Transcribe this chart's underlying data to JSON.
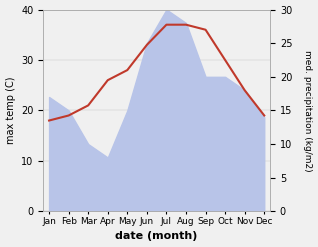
{
  "months": [
    "Jan",
    "Feb",
    "Mar",
    "Apr",
    "May",
    "Jun",
    "Jul",
    "Aug",
    "Sep",
    "Oct",
    "Nov",
    "Dec"
  ],
  "max_temp": [
    18,
    19,
    21,
    26,
    28,
    33,
    37,
    37,
    36,
    30,
    24,
    19
  ],
  "precipitation": [
    17,
    15,
    10,
    8,
    15,
    25,
    30,
    28,
    20,
    20,
    18,
    14
  ],
  "temp_color": "#c0392b",
  "precip_fill_color": "#b8c4e8",
  "left_ylim": [
    0,
    40
  ],
  "right_ylim": [
    0,
    30
  ],
  "left_yticks": [
    0,
    10,
    20,
    30,
    40
  ],
  "right_yticks": [
    0,
    5,
    10,
    15,
    20,
    25,
    30
  ],
  "ylabel_left": "max temp (C)",
  "ylabel_right": "med. precipitation (kg/m2)",
  "xlabel": "date (month)",
  "background_color": "#f0f0f0",
  "title": ""
}
